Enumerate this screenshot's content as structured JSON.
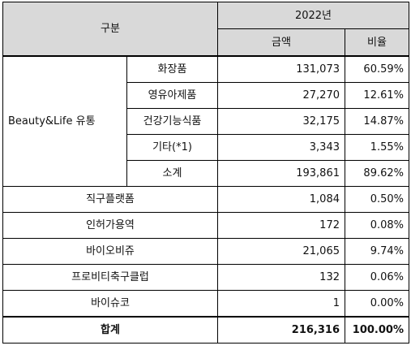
{
  "header": {
    "category": "구분",
    "year": "2022년",
    "amount": "금액",
    "ratio": "비율"
  },
  "beauty_group": {
    "label": "Beauty&Life 유통",
    "rows": [
      {
        "name": "화장품",
        "amount": "131,073",
        "ratio": "60.59%"
      },
      {
        "name": "영유아제품",
        "amount": "27,270",
        "ratio": "12.61%"
      },
      {
        "name": "건강기능식품",
        "amount": "32,175",
        "ratio": "14.87%"
      },
      {
        "name": "기타(*1)",
        "amount": "3,343",
        "ratio": "1.55%"
      },
      {
        "name": "소계",
        "amount": "193,861",
        "ratio": "89.62%"
      }
    ]
  },
  "other_rows": [
    {
      "name": "직구플랫폼",
      "amount": "1,084",
      "ratio": "0.50%"
    },
    {
      "name": "인허가용역",
      "amount": "172",
      "ratio": "0.08%"
    },
    {
      "name": "바이오비쥬",
      "amount": "21,065",
      "ratio": "9.74%"
    },
    {
      "name": "프로비티축구클럽",
      "amount": "132",
      "ratio": "0.06%"
    },
    {
      "name": "바이슈코",
      "amount": "1",
      "ratio": "0.00%"
    }
  ],
  "total": {
    "name": "합계",
    "amount": "216,316",
    "ratio": "100.00%"
  }
}
